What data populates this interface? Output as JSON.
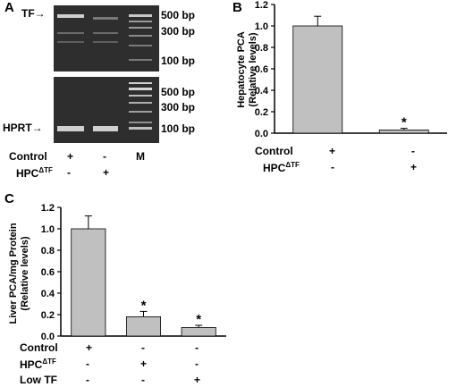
{
  "panelA": {
    "label": "A",
    "gel_top": {
      "arrow_label": "TF→",
      "markers": [
        "500 bp",
        "300 bp",
        "100 bp"
      ]
    },
    "gel_bottom": {
      "arrow_label": "HPRT→",
      "markers": [
        "500 bp",
        "300 bp",
        "100 bp"
      ]
    },
    "rows": [
      {
        "label": "Control",
        "values": [
          "+",
          "-",
          "M"
        ]
      },
      {
        "label": "HPC",
        "sup": "ΔTF",
        "values": [
          "-",
          "+",
          ""
        ]
      }
    ]
  },
  "panelB": {
    "label": "B",
    "ylabel_line1": "Hepatocyte PCA",
    "ylabel_line2": "(Relative levels)",
    "yticks": [
      "0.0",
      "0.2",
      "0.4",
      "0.6",
      "0.8",
      "1.0",
      "1.2"
    ],
    "rows": [
      {
        "label": "Control",
        "values": [
          "+",
          "-"
        ]
      },
      {
        "label": "HPC",
        "sup": "ΔTF",
        "values": [
          "-",
          "+"
        ]
      }
    ]
  },
  "panelC": {
    "label": "C",
    "ylabel_line1": "Liver PCA/mg Protein",
    "ylabel_line2": "(Relative levels)",
    "yticks": [
      "0.0",
      "0.2",
      "0.4",
      "0.6",
      "0.8",
      "1.0",
      "1.2"
    ],
    "rows": [
      {
        "label": "Control",
        "values": [
          "+",
          "-",
          "-"
        ]
      },
      {
        "label": "HPC",
        "sup": "ΔTF",
        "values": [
          "-",
          "+",
          "-"
        ]
      },
      {
        "label": "Low TF",
        "values": [
          "-",
          "-",
          "+"
        ]
      }
    ]
  },
  "chart_data": [
    {
      "type": "bar",
      "panel": "B",
      "categories": [
        "Control",
        "HPCΔTF"
      ],
      "values": [
        1.0,
        0.03
      ],
      "errors": [
        0.09,
        0.015
      ],
      "significance": [
        "",
        "*"
      ],
      "ylim": [
        0,
        1.2
      ],
      "bar_color": "#c0c0c0"
    },
    {
      "type": "bar",
      "panel": "C",
      "categories": [
        "Control",
        "HPCΔTF",
        "Low TF"
      ],
      "values": [
        1.0,
        0.18,
        0.08
      ],
      "errors": [
        0.12,
        0.05,
        0.02
      ],
      "significance": [
        "",
        "*",
        "*"
      ],
      "ylim": [
        0,
        1.2
      ],
      "bar_color": "#c0c0c0"
    }
  ]
}
